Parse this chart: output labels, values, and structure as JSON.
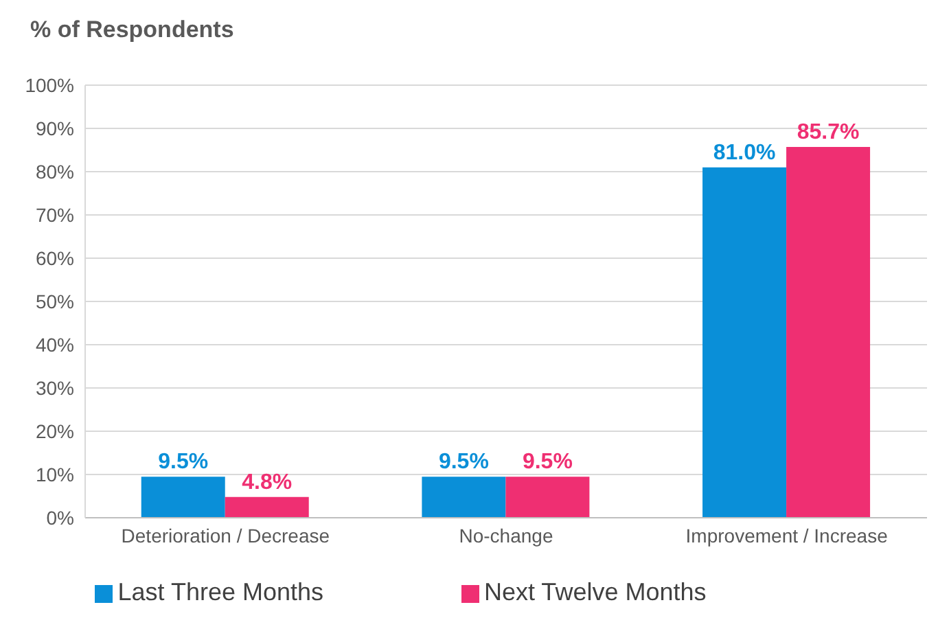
{
  "chart_data": {
    "type": "bar",
    "title": "% of Respondents",
    "categories": [
      "Deterioration / Decrease",
      "No-change",
      "Improvement / Increase"
    ],
    "series": [
      {
        "name": "Last Three Months",
        "color": "#0a8fd8",
        "values": [
          9.5,
          9.5,
          81.0
        ],
        "value_labels": [
          "9.5%",
          "9.5%",
          "81.0%"
        ]
      },
      {
        "name": "Next Twelve Months",
        "color": "#ef2f72",
        "values": [
          4.8,
          9.5,
          85.7
        ],
        "value_labels": [
          "4.8%",
          "9.5%",
          "85.7%"
        ]
      }
    ],
    "ylim": [
      0,
      100
    ],
    "yticks": [
      {
        "value": 0,
        "label": "0%"
      },
      {
        "value": 10,
        "label": "10%"
      },
      {
        "value": 20,
        "label": "20%"
      },
      {
        "value": 30,
        "label": "30%"
      },
      {
        "value": 40,
        "label": "40%"
      },
      {
        "value": 50,
        "label": "50%"
      },
      {
        "value": 60,
        "label": "60%"
      },
      {
        "value": 70,
        "label": "70%"
      },
      {
        "value": 80,
        "label": "80%"
      },
      {
        "value": 90,
        "label": "90%"
      },
      {
        "value": 100,
        "label": "100%"
      }
    ],
    "grid": "y",
    "legend": "bottom"
  }
}
